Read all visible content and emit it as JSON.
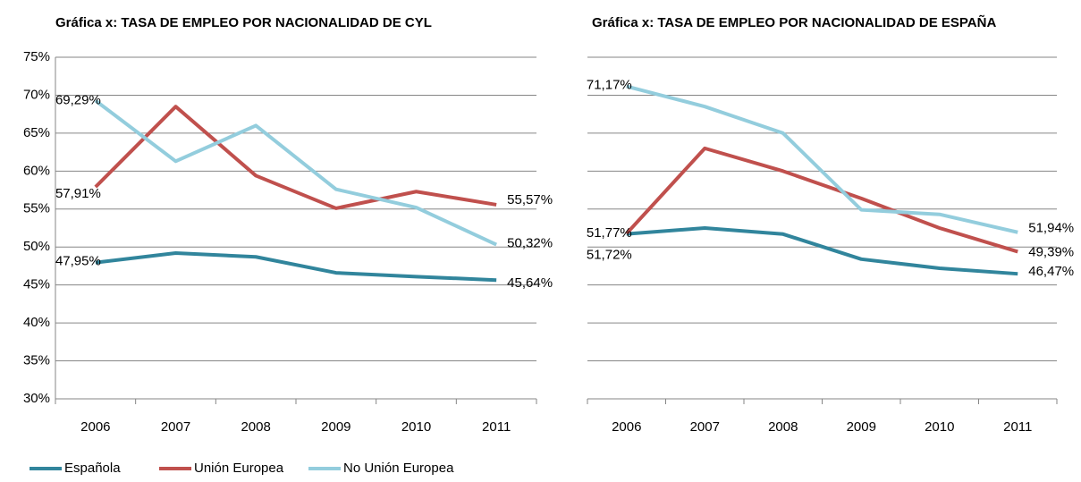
{
  "chart_data": [
    {
      "type": "line",
      "title": "Gráfica x: TASA DE EMPLEO POR NACIONALIDAD DE CYL",
      "categories": [
        "2006",
        "2007",
        "2008",
        "2009",
        "2010",
        "2011"
      ],
      "ylim": [
        30,
        75
      ],
      "yticks": [
        {
          "value": 30,
          "label": "30%"
        },
        {
          "value": 35,
          "label": "35%"
        },
        {
          "value": 40,
          "label": "40%"
        },
        {
          "value": 45,
          "label": "45%"
        },
        {
          "value": 50,
          "label": "50%"
        },
        {
          "value": 55,
          "label": "55%"
        },
        {
          "value": 60,
          "label": "60%"
        },
        {
          "value": 65,
          "label": "65%"
        },
        {
          "value": 70,
          "label": "70%"
        },
        {
          "value": 75,
          "label": "75%"
        }
      ],
      "grid": true,
      "legend": "bottom",
      "series": [
        {
          "name": "Española",
          "color": "#31859c",
          "values": [
            47.95,
            49.2,
            48.7,
            46.6,
            46.1,
            45.64
          ],
          "value_labels": [
            "47,95%",
            null,
            null,
            null,
            null,
            "45,64%"
          ]
        },
        {
          "name": "Unión Europea",
          "color": "#c0504d",
          "values": [
            57.91,
            68.5,
            59.4,
            55.1,
            57.3,
            55.57
          ],
          "value_labels": [
            "57,91%",
            null,
            null,
            null,
            null,
            "55,57%"
          ]
        },
        {
          "name": "No Unión Europea",
          "color": "#93cddd",
          "values": [
            69.29,
            61.3,
            66.0,
            57.6,
            55.2,
            50.32
          ],
          "value_labels": [
            "69,29%",
            null,
            null,
            null,
            null,
            "50,32%"
          ]
        }
      ]
    },
    {
      "type": "line",
      "title": "Gráfica x: TASA DE EMPLEO POR NACIONALIDAD DE ESPAÑA",
      "categories": [
        "2006",
        "2007",
        "2008",
        "2009",
        "2010",
        "2011"
      ],
      "ylim": [
        30,
        75
      ],
      "yticks": [
        30,
        35,
        40,
        45,
        50,
        55,
        60,
        65,
        70,
        75
      ],
      "ytick_labels": false,
      "grid": true,
      "series": [
        {
          "color": "#31859c",
          "values": [
            51.72,
            52.5,
            51.7,
            48.4,
            47.2,
            46.47
          ],
          "value_labels": [
            "51,72%",
            null,
            null,
            null,
            null,
            "46,47%"
          ]
        },
        {
          "color": "#c0504d",
          "values": [
            51.77,
            63.0,
            60.0,
            56.4,
            52.5,
            49.39
          ],
          "value_labels": [
            "51,77%",
            null,
            null,
            null,
            null,
            "49,39%"
          ]
        },
        {
          "color": "#93cddd",
          "values": [
            71.17,
            68.5,
            65.0,
            54.9,
            54.3,
            51.94
          ],
          "value_labels": [
            "71,17%",
            null,
            null,
            null,
            null,
            "51,94%"
          ]
        }
      ]
    }
  ]
}
